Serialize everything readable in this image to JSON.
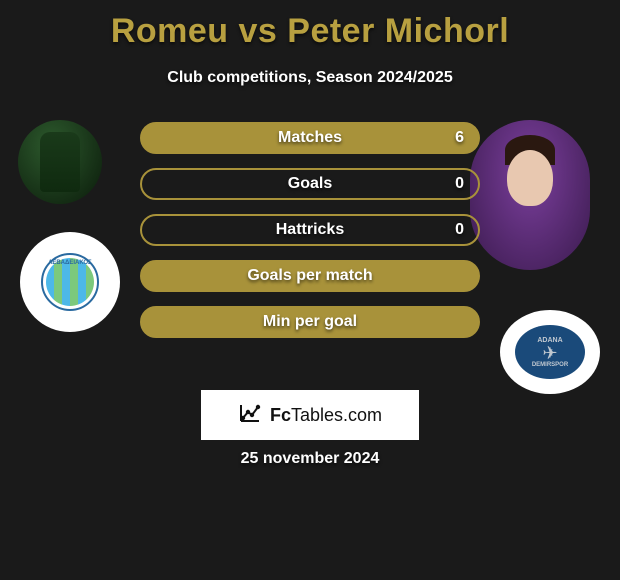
{
  "title": "Romeu vs Peter Michorl",
  "subtitle": "Club competitions, Season 2024/2025",
  "date": "25 november 2024",
  "branding": {
    "prefix": "Fc",
    "middle": "Tables",
    "suffix": ".com"
  },
  "colors": {
    "accent": "#a8923a",
    "title": "#b8a040",
    "background": "#1a1a1a",
    "badge_bg": "#ffffff"
  },
  "stats": [
    {
      "label": "Matches",
      "value": "6",
      "filled": true
    },
    {
      "label": "Goals",
      "value": "0",
      "filled": false
    },
    {
      "label": "Hattricks",
      "value": "0",
      "filled": false
    },
    {
      "label": "Goals per match",
      "value": "",
      "filled": true
    },
    {
      "label": "Min per goal",
      "value": "",
      "filled": true
    }
  ],
  "clubs": {
    "club1": {
      "inner_text": "ΛΕΒΑΔΕΙΑΚΟΣ",
      "stripe_a": "#4db8e8",
      "stripe_b": "#7cc97c",
      "text_color": "#2a6aa0"
    },
    "club2": {
      "text_top": "ADANA",
      "text_bottom": "DEMIRSPOR",
      "bg": "#1a4a7a",
      "wing_color": "#c0c8d0"
    }
  }
}
